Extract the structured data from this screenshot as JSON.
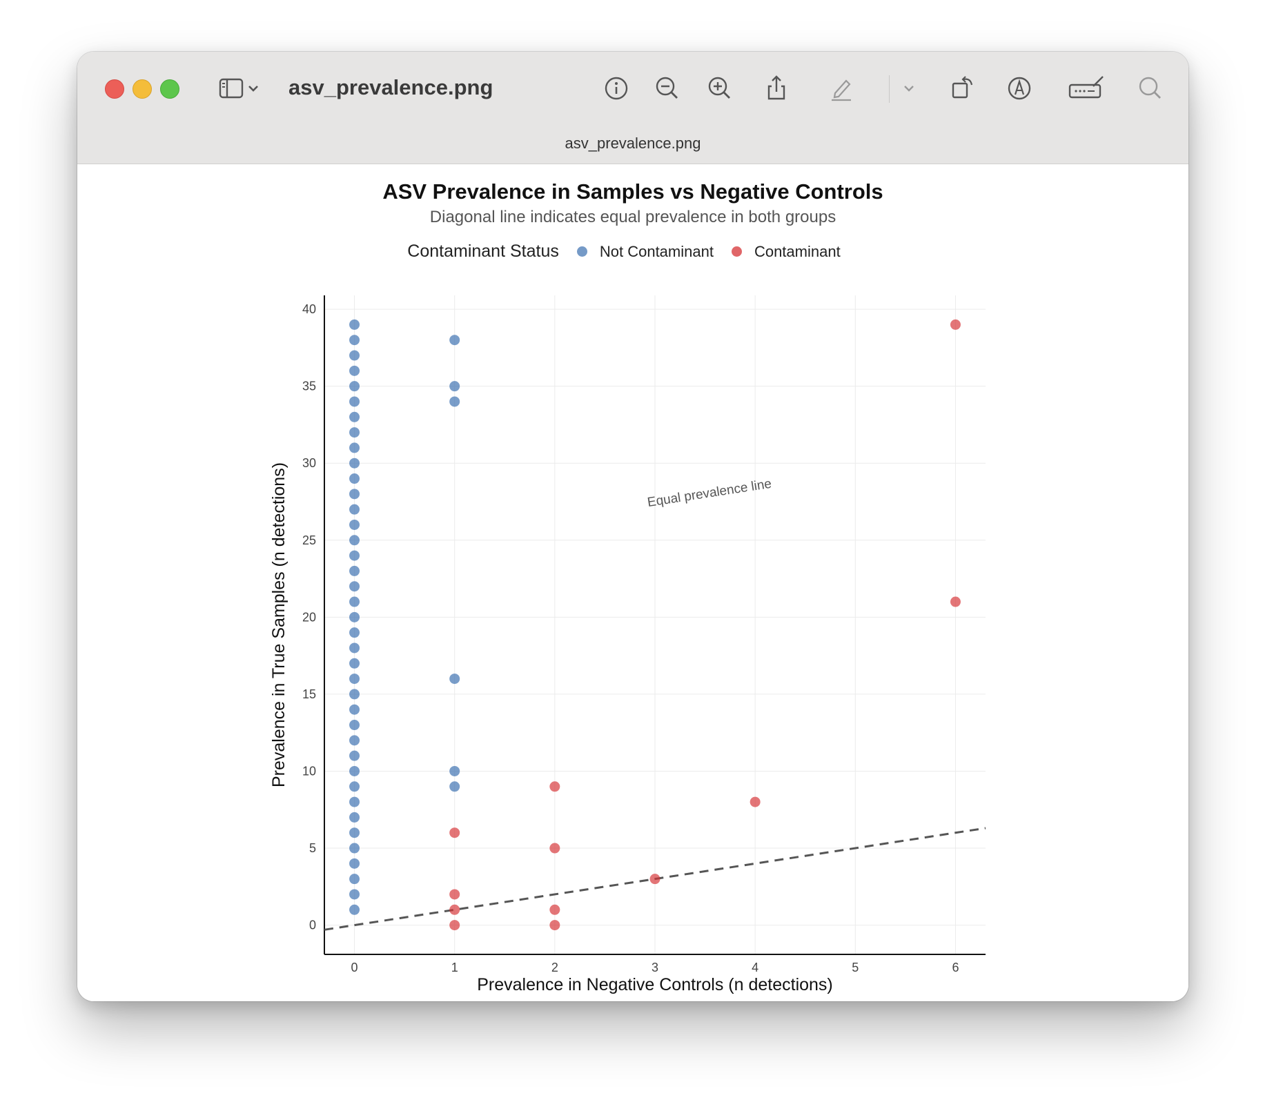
{
  "window": {
    "title": "asv_prevalence.png",
    "tab_title": "asv_prevalence.png",
    "toolbar_icons": [
      "sidebar-icon",
      "chevron-down-icon",
      "info-icon",
      "zoom-out-icon",
      "zoom-in-icon",
      "share-icon",
      "highlight-pen-icon",
      "chevron-down-icon",
      "rotate-icon",
      "markup-icon",
      "signature-icon",
      "search-icon"
    ]
  },
  "chart_data": {
    "type": "scatter",
    "title": "ASV Prevalence in Samples vs Negative Controls",
    "subtitle": "Diagonal line indicates equal prevalence in both groups",
    "xlabel": "Prevalence in Negative Controls (n detections)",
    "ylabel": "Prevalence in True Samples (n detections)",
    "xlim": [
      -0.3,
      6.3
    ],
    "ylim": [
      -1.9,
      40.9
    ],
    "xticks": [
      0,
      1,
      2,
      3,
      4,
      5,
      6
    ],
    "yticks": [
      0,
      5,
      10,
      15,
      20,
      25,
      30,
      35,
      40
    ],
    "grid": true,
    "legend": {
      "title": "Contaminant Status",
      "position": "top",
      "entries": [
        {
          "label": "Not Contaminant",
          "color": "#3a6faf"
        },
        {
          "label": "Contaminant",
          "color": "#d63336"
        }
      ]
    },
    "reference_line": {
      "type": "y=x",
      "style": "dashed",
      "color": "#555555",
      "label": "Equal prevalence line"
    },
    "series": [
      {
        "name": "Not Contaminant",
        "color": "#3a6faf",
        "points": [
          [
            0,
            1
          ],
          [
            0,
            2
          ],
          [
            0,
            3
          ],
          [
            0,
            4
          ],
          [
            0,
            5
          ],
          [
            0,
            6
          ],
          [
            0,
            7
          ],
          [
            0,
            8
          ],
          [
            0,
            9
          ],
          [
            0,
            10
          ],
          [
            0,
            11
          ],
          [
            0,
            12
          ],
          [
            0,
            13
          ],
          [
            0,
            14
          ],
          [
            0,
            15
          ],
          [
            0,
            16
          ],
          [
            0,
            17
          ],
          [
            0,
            18
          ],
          [
            0,
            19
          ],
          [
            0,
            20
          ],
          [
            0,
            21
          ],
          [
            0,
            22
          ],
          [
            0,
            23
          ],
          [
            0,
            24
          ],
          [
            0,
            25
          ],
          [
            0,
            26
          ],
          [
            0,
            27
          ],
          [
            0,
            28
          ],
          [
            0,
            29
          ],
          [
            0,
            30
          ],
          [
            0,
            31
          ],
          [
            0,
            32
          ],
          [
            0,
            33
          ],
          [
            0,
            34
          ],
          [
            0,
            35
          ],
          [
            0,
            36
          ],
          [
            0,
            37
          ],
          [
            0,
            38
          ],
          [
            0,
            39
          ],
          [
            1,
            38
          ],
          [
            1,
            35
          ],
          [
            1,
            34
          ],
          [
            1,
            16
          ],
          [
            1,
            10
          ],
          [
            1,
            9
          ]
        ]
      },
      {
        "name": "Contaminant",
        "color": "#d63336",
        "points": [
          [
            1,
            6
          ],
          [
            1,
            2
          ],
          [
            1,
            1
          ],
          [
            1,
            0
          ],
          [
            2,
            9
          ],
          [
            2,
            5
          ],
          [
            2,
            1
          ],
          [
            2,
            0
          ],
          [
            3,
            3
          ],
          [
            4,
            8
          ],
          [
            6,
            21
          ],
          [
            6,
            39
          ]
        ]
      }
    ]
  }
}
